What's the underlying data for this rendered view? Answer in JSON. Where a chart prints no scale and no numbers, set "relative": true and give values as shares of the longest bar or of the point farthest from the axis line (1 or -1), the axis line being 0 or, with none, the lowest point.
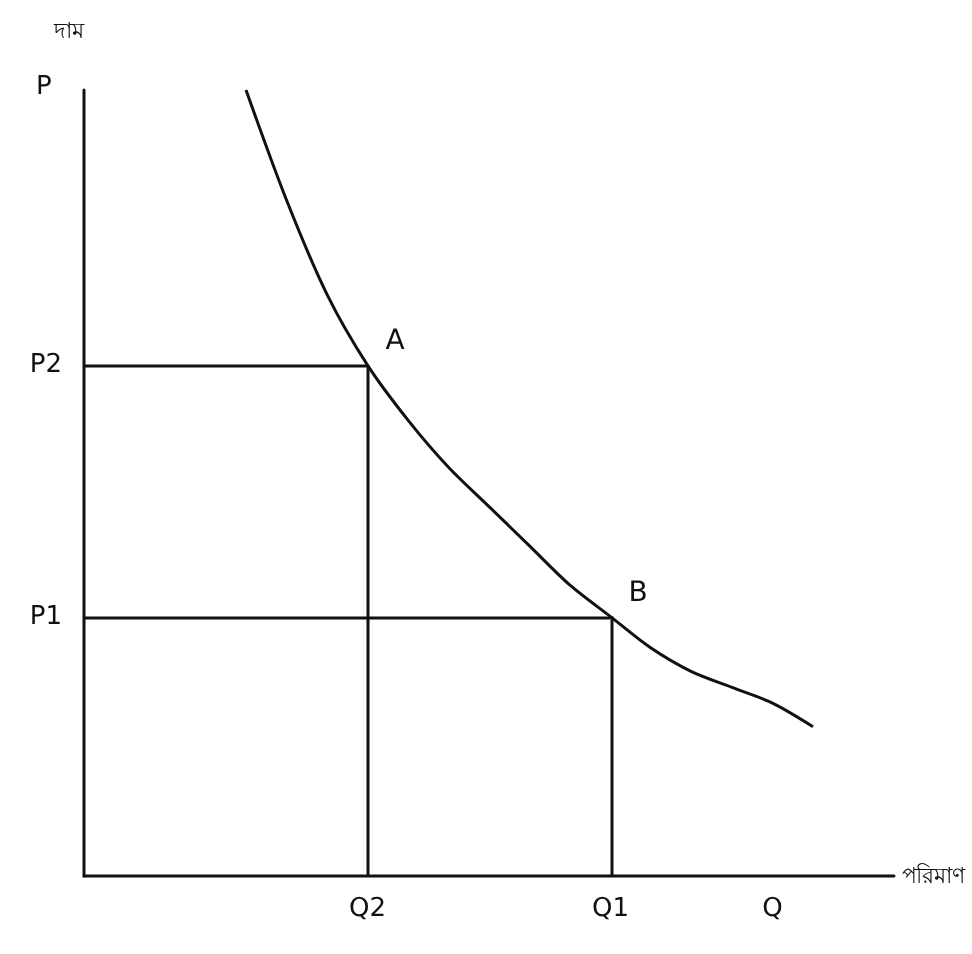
{
  "chart_data": {
    "type": "line",
    "relative": true,
    "ylabel": "দাম",
    "xlabel": "পরিমাণ",
    "categories": [
      null,
      null,
      null,
      null,
      null,
      null,
      null,
      "Q2",
      null,
      null,
      null,
      null,
      null,
      "Q1",
      null,
      null,
      null,
      "Q",
      null,
      null,
      null
    ],
    "series": [
      {
        "color": "#111111",
        "values": [
          null,
          null,
          null,
          null,
          1.0,
          0.86,
          0.74,
          0.65,
          0.58,
          0.52,
          0.47,
          0.42,
          0.37,
          0.33,
          0.29,
          0.26,
          0.24,
          0.22,
          0.19,
          null,
          null
        ]
      }
    ],
    "annotations": [
      {
        "text": "A",
        "x": "Q2",
        "y": 0.65
      },
      {
        "text": "B",
        "x": "Q1",
        "y": 0.33
      },
      "P"
    ],
    "ref_lines": [
      {
        "axis": "y",
        "value": 0.65,
        "label": "P2"
      },
      {
        "axis": "y",
        "value": 0.33,
        "label": "P1"
      },
      {
        "axis": "x",
        "value": "Q2"
      },
      {
        "axis": "x",
        "value": "Q1"
      }
    ],
    "grid": false,
    "marker": "none",
    "line_style": "solid"
  }
}
